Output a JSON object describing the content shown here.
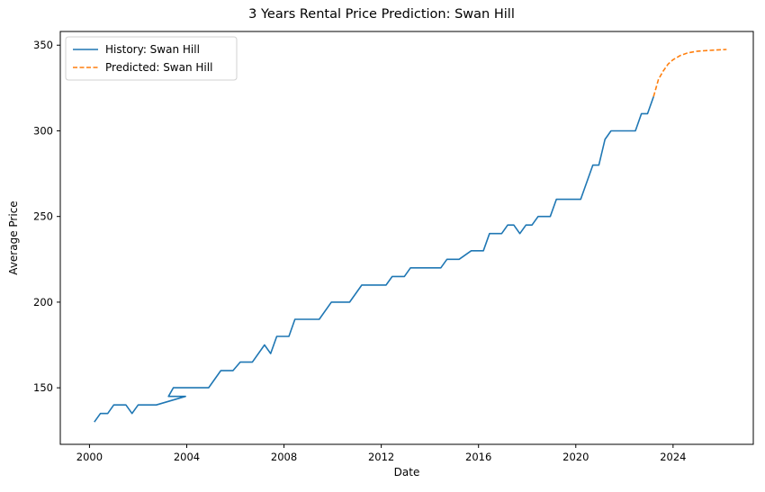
{
  "chart_data": {
    "type": "line",
    "title": "3 Years Rental Price Prediction: Swan Hill",
    "xlabel": "Date",
    "ylabel": "Average Price",
    "xlim": [
      1998.8,
      2027.3
    ],
    "ylim": [
      117,
      358
    ],
    "x_ticks": [
      2000,
      2004,
      2008,
      2012,
      2016,
      2020,
      2024
    ],
    "y_ticks": [
      150,
      200,
      250,
      300,
      350
    ],
    "legend_position": "upper-left",
    "series": [
      {
        "name": "History: Swan Hill",
        "color": "#1f77b4",
        "style": "solid",
        "points": [
          [
            2000.2,
            130
          ],
          [
            2000.45,
            135
          ],
          [
            2000.75,
            135
          ],
          [
            2001.0,
            140
          ],
          [
            2001.5,
            140
          ],
          [
            2001.75,
            135
          ],
          [
            2002.0,
            140
          ],
          [
            2002.75,
            140
          ],
          [
            2003.95,
            145
          ],
          [
            2003.25,
            145
          ],
          [
            2003.45,
            150
          ],
          [
            2004.9,
            150
          ],
          [
            2005.4,
            160
          ],
          [
            2005.9,
            160
          ],
          [
            2006.2,
            165
          ],
          [
            2006.7,
            165
          ],
          [
            2007.2,
            175
          ],
          [
            2007.45,
            170
          ],
          [
            2007.7,
            180
          ],
          [
            2008.2,
            180
          ],
          [
            2008.45,
            190
          ],
          [
            2009.45,
            190
          ],
          [
            2009.95,
            200
          ],
          [
            2010.7,
            200
          ],
          [
            2011.2,
            210
          ],
          [
            2012.2,
            210
          ],
          [
            2012.45,
            215
          ],
          [
            2012.95,
            215
          ],
          [
            2013.2,
            220
          ],
          [
            2014.45,
            220
          ],
          [
            2014.7,
            225
          ],
          [
            2015.2,
            225
          ],
          [
            2015.7,
            230
          ],
          [
            2016.2,
            230
          ],
          [
            2016.45,
            240
          ],
          [
            2016.95,
            240
          ],
          [
            2017.2,
            245
          ],
          [
            2017.45,
            245
          ],
          [
            2017.7,
            240
          ],
          [
            2017.95,
            245
          ],
          [
            2018.2,
            245
          ],
          [
            2018.45,
            250
          ],
          [
            2018.95,
            250
          ],
          [
            2019.2,
            260
          ],
          [
            2020.2,
            260
          ],
          [
            2020.7,
            280
          ],
          [
            2020.95,
            280
          ],
          [
            2021.2,
            295
          ],
          [
            2021.45,
            300
          ],
          [
            2022.45,
            300
          ],
          [
            2022.7,
            310
          ],
          [
            2022.95,
            310
          ],
          [
            2023.2,
            320
          ]
        ]
      },
      {
        "name": "Predicted: Swan Hill",
        "color": "#ff7f0e",
        "style": "dashed",
        "points": [
          [
            2023.2,
            320
          ],
          [
            2023.4,
            330
          ],
          [
            2023.6,
            335
          ],
          [
            2023.8,
            339
          ],
          [
            2024.0,
            341.5
          ],
          [
            2024.3,
            344
          ],
          [
            2024.6,
            345.5
          ],
          [
            2025.0,
            346.5
          ],
          [
            2025.5,
            347
          ],
          [
            2026.2,
            347.5
          ]
        ]
      }
    ]
  }
}
